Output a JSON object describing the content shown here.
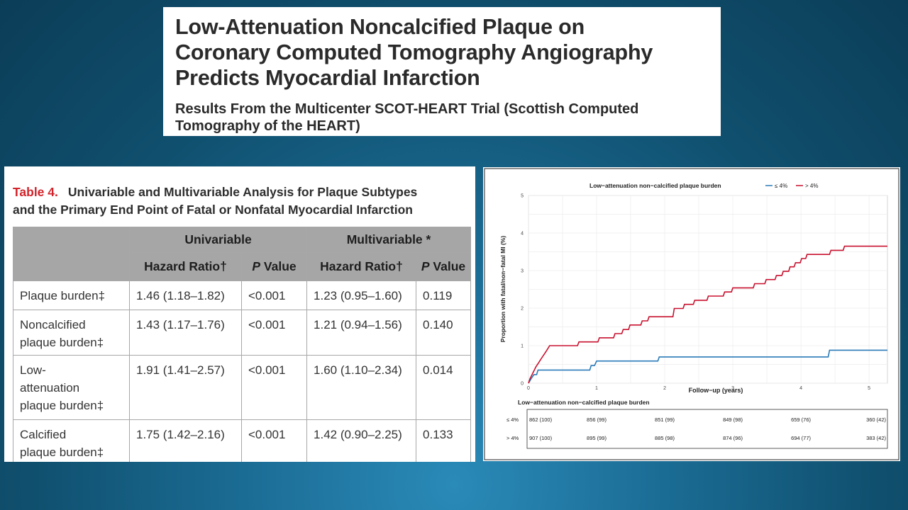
{
  "title": {
    "line1": "Low-Attenuation Noncalcified Plaque on",
    "line2": "Coronary Computed Tomography Angiography",
    "line3": "Predicts Myocardial Infarction",
    "sub1": "Results From the Multicenter SCOT-HEART Trial (Scottish Computed",
    "sub2": "Tomography of the HEART)"
  },
  "table": {
    "label": "Table 4.",
    "caption1": "Univariable and Multivariable Analysis for Plaque Subtypes",
    "caption2": "and the Primary End Point of Fatal or Nonfatal Myocardial Infarction",
    "group_univariable": "Univariable",
    "group_multivariable": "Multivariable *",
    "col_hr": "Hazard Ratio†",
    "col_p_italic": "P",
    "col_p_rest": " Value",
    "rows": [
      {
        "label_lines": [
          "Plaque burden‡"
        ],
        "uni_hr": "1.46 (1.18–1.82)",
        "uni_p": "<0.001",
        "multi_hr": "1.23 (0.95–1.60)",
        "multi_p": "0.119"
      },
      {
        "label_lines": [
          "Noncalcified",
          "plaque burden‡"
        ],
        "uni_hr": "1.43 (1.17–1.76)",
        "uni_p": "<0.001",
        "multi_hr": "1.21 (0.94–1.56)",
        "multi_p": "0.140"
      },
      {
        "label_lines": [
          "Low-",
          "attenuation",
          "plaque burden‡"
        ],
        "uni_hr": "1.91 (1.41–2.57)",
        "uni_p": "<0.001",
        "multi_hr": "1.60 (1.10–2.34)",
        "multi_p": "0.014"
      },
      {
        "label_lines": [
          "Calcified",
          "plaque burden‡"
        ],
        "uni_hr": "1.75 (1.42–2.16)",
        "uni_p": "<0.001",
        "multi_hr": "1.42 (0.90–2.25)",
        "multi_p": "0.133"
      }
    ]
  },
  "chart_data": {
    "type": "line",
    "legend_title": "Low−attenuation non−calcified plaque burden",
    "legend_position": "top",
    "xlabel": "Follow−up (years)",
    "ylabel": "Proportion with fatal/non−fatal MI (%)",
    "xlim": [
      0,
      5.27
    ],
    "ylim": [
      0,
      5
    ],
    "x_ticks": [
      0,
      1,
      2,
      3,
      4,
      5
    ],
    "y_ticks": [
      0,
      1,
      2,
      3,
      4,
      5
    ],
    "grid": true,
    "colors": {
      "low": "#2a7ab8",
      "high": "#c8102e"
    },
    "series": [
      {
        "name": "≤ 4%",
        "color": "#2a7ab8",
        "points": [
          [
            0,
            0
          ],
          [
            0.04,
            0.12
          ],
          [
            0.08,
            0.23
          ],
          [
            0.12,
            0.23
          ],
          [
            0.14,
            0.35
          ],
          [
            0.3,
            0.35
          ],
          [
            0.32,
            0.35
          ],
          [
            0.9,
            0.35
          ],
          [
            0.92,
            0.47
          ],
          [
            0.97,
            0.47
          ],
          [
            1.0,
            0.59
          ],
          [
            1.9,
            0.59
          ],
          [
            1.92,
            0.7
          ],
          [
            4.4,
            0.7
          ],
          [
            4.42,
            0.88
          ],
          [
            5.27,
            0.88
          ]
        ]
      },
      {
        "name": "> 4%",
        "color": "#c8102e",
        "points": [
          [
            0,
            0
          ],
          [
            0.02,
            0.11
          ],
          [
            0.05,
            0.22
          ],
          [
            0.08,
            0.33
          ],
          [
            0.11,
            0.44
          ],
          [
            0.15,
            0.55
          ],
          [
            0.19,
            0.66
          ],
          [
            0.23,
            0.77
          ],
          [
            0.27,
            0.88
          ],
          [
            0.31,
            1.0
          ],
          [
            0.72,
            1.0
          ],
          [
            0.74,
            1.1
          ],
          [
            1.02,
            1.1
          ],
          [
            1.04,
            1.21
          ],
          [
            1.25,
            1.21
          ],
          [
            1.27,
            1.32
          ],
          [
            1.37,
            1.32
          ],
          [
            1.39,
            1.43
          ],
          [
            1.47,
            1.43
          ],
          [
            1.49,
            1.55
          ],
          [
            1.65,
            1.55
          ],
          [
            1.67,
            1.66
          ],
          [
            1.75,
            1.66
          ],
          [
            1.77,
            1.77
          ],
          [
            2.12,
            1.77
          ],
          [
            2.14,
            1.99
          ],
          [
            2.27,
            1.99
          ],
          [
            2.29,
            2.1
          ],
          [
            2.42,
            2.1
          ],
          [
            2.44,
            2.21
          ],
          [
            2.62,
            2.21
          ],
          [
            2.64,
            2.32
          ],
          [
            2.86,
            2.32
          ],
          [
            2.88,
            2.43
          ],
          [
            2.98,
            2.43
          ],
          [
            3.0,
            2.54
          ],
          [
            3.3,
            2.54
          ],
          [
            3.32,
            2.65
          ],
          [
            3.47,
            2.65
          ],
          [
            3.49,
            2.76
          ],
          [
            3.62,
            2.76
          ],
          [
            3.64,
            2.87
          ],
          [
            3.72,
            2.87
          ],
          [
            3.74,
            2.98
          ],
          [
            3.82,
            2.98
          ],
          [
            3.84,
            3.1
          ],
          [
            3.9,
            3.1
          ],
          [
            3.92,
            3.21
          ],
          [
            3.99,
            3.21
          ],
          [
            4.01,
            3.32
          ],
          [
            4.07,
            3.32
          ],
          [
            4.09,
            3.43
          ],
          [
            4.42,
            3.43
          ],
          [
            4.44,
            3.54
          ],
          [
            4.62,
            3.54
          ],
          [
            4.64,
            3.65
          ],
          [
            5.27,
            3.65
          ]
        ]
      }
    ],
    "risk_table": {
      "title": "Low−attenuation non−calcified plaque burden",
      "rows": [
        {
          "label": "≤ 4%",
          "values": [
            "862 (100)",
            "856 (99)",
            "851 (99)",
            "849 (98)",
            "659 (76)",
            "360 (42)"
          ]
        },
        {
          "label": "> 4%",
          "values": [
            "907 (100)",
            "895 (99)",
            "885 (98)",
            "874 (96)",
            "694 (77)",
            "383 (42)"
          ]
        }
      ]
    }
  }
}
